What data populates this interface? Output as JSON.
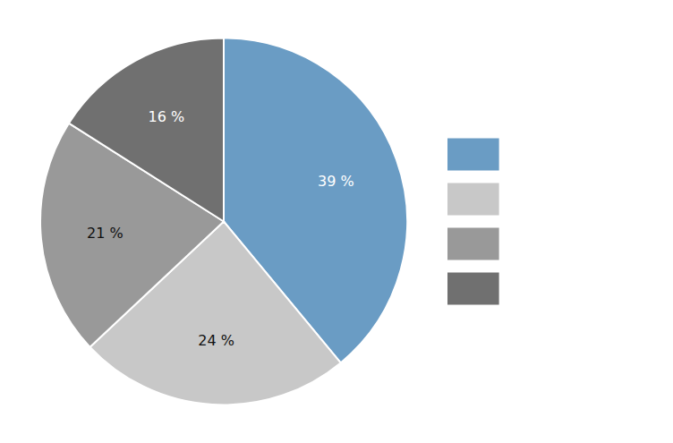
{
  "chart_data": {
    "type": "pie",
    "values": [
      39,
      24,
      21,
      16
    ],
    "value_labels": [
      "39 %",
      "24 %",
      "21 %",
      "16 %"
    ],
    "colors": [
      "#6a9cc4",
      "#c8c8c8",
      "#999999",
      "#707070"
    ],
    "data_labels": true,
    "legend": "right"
  }
}
